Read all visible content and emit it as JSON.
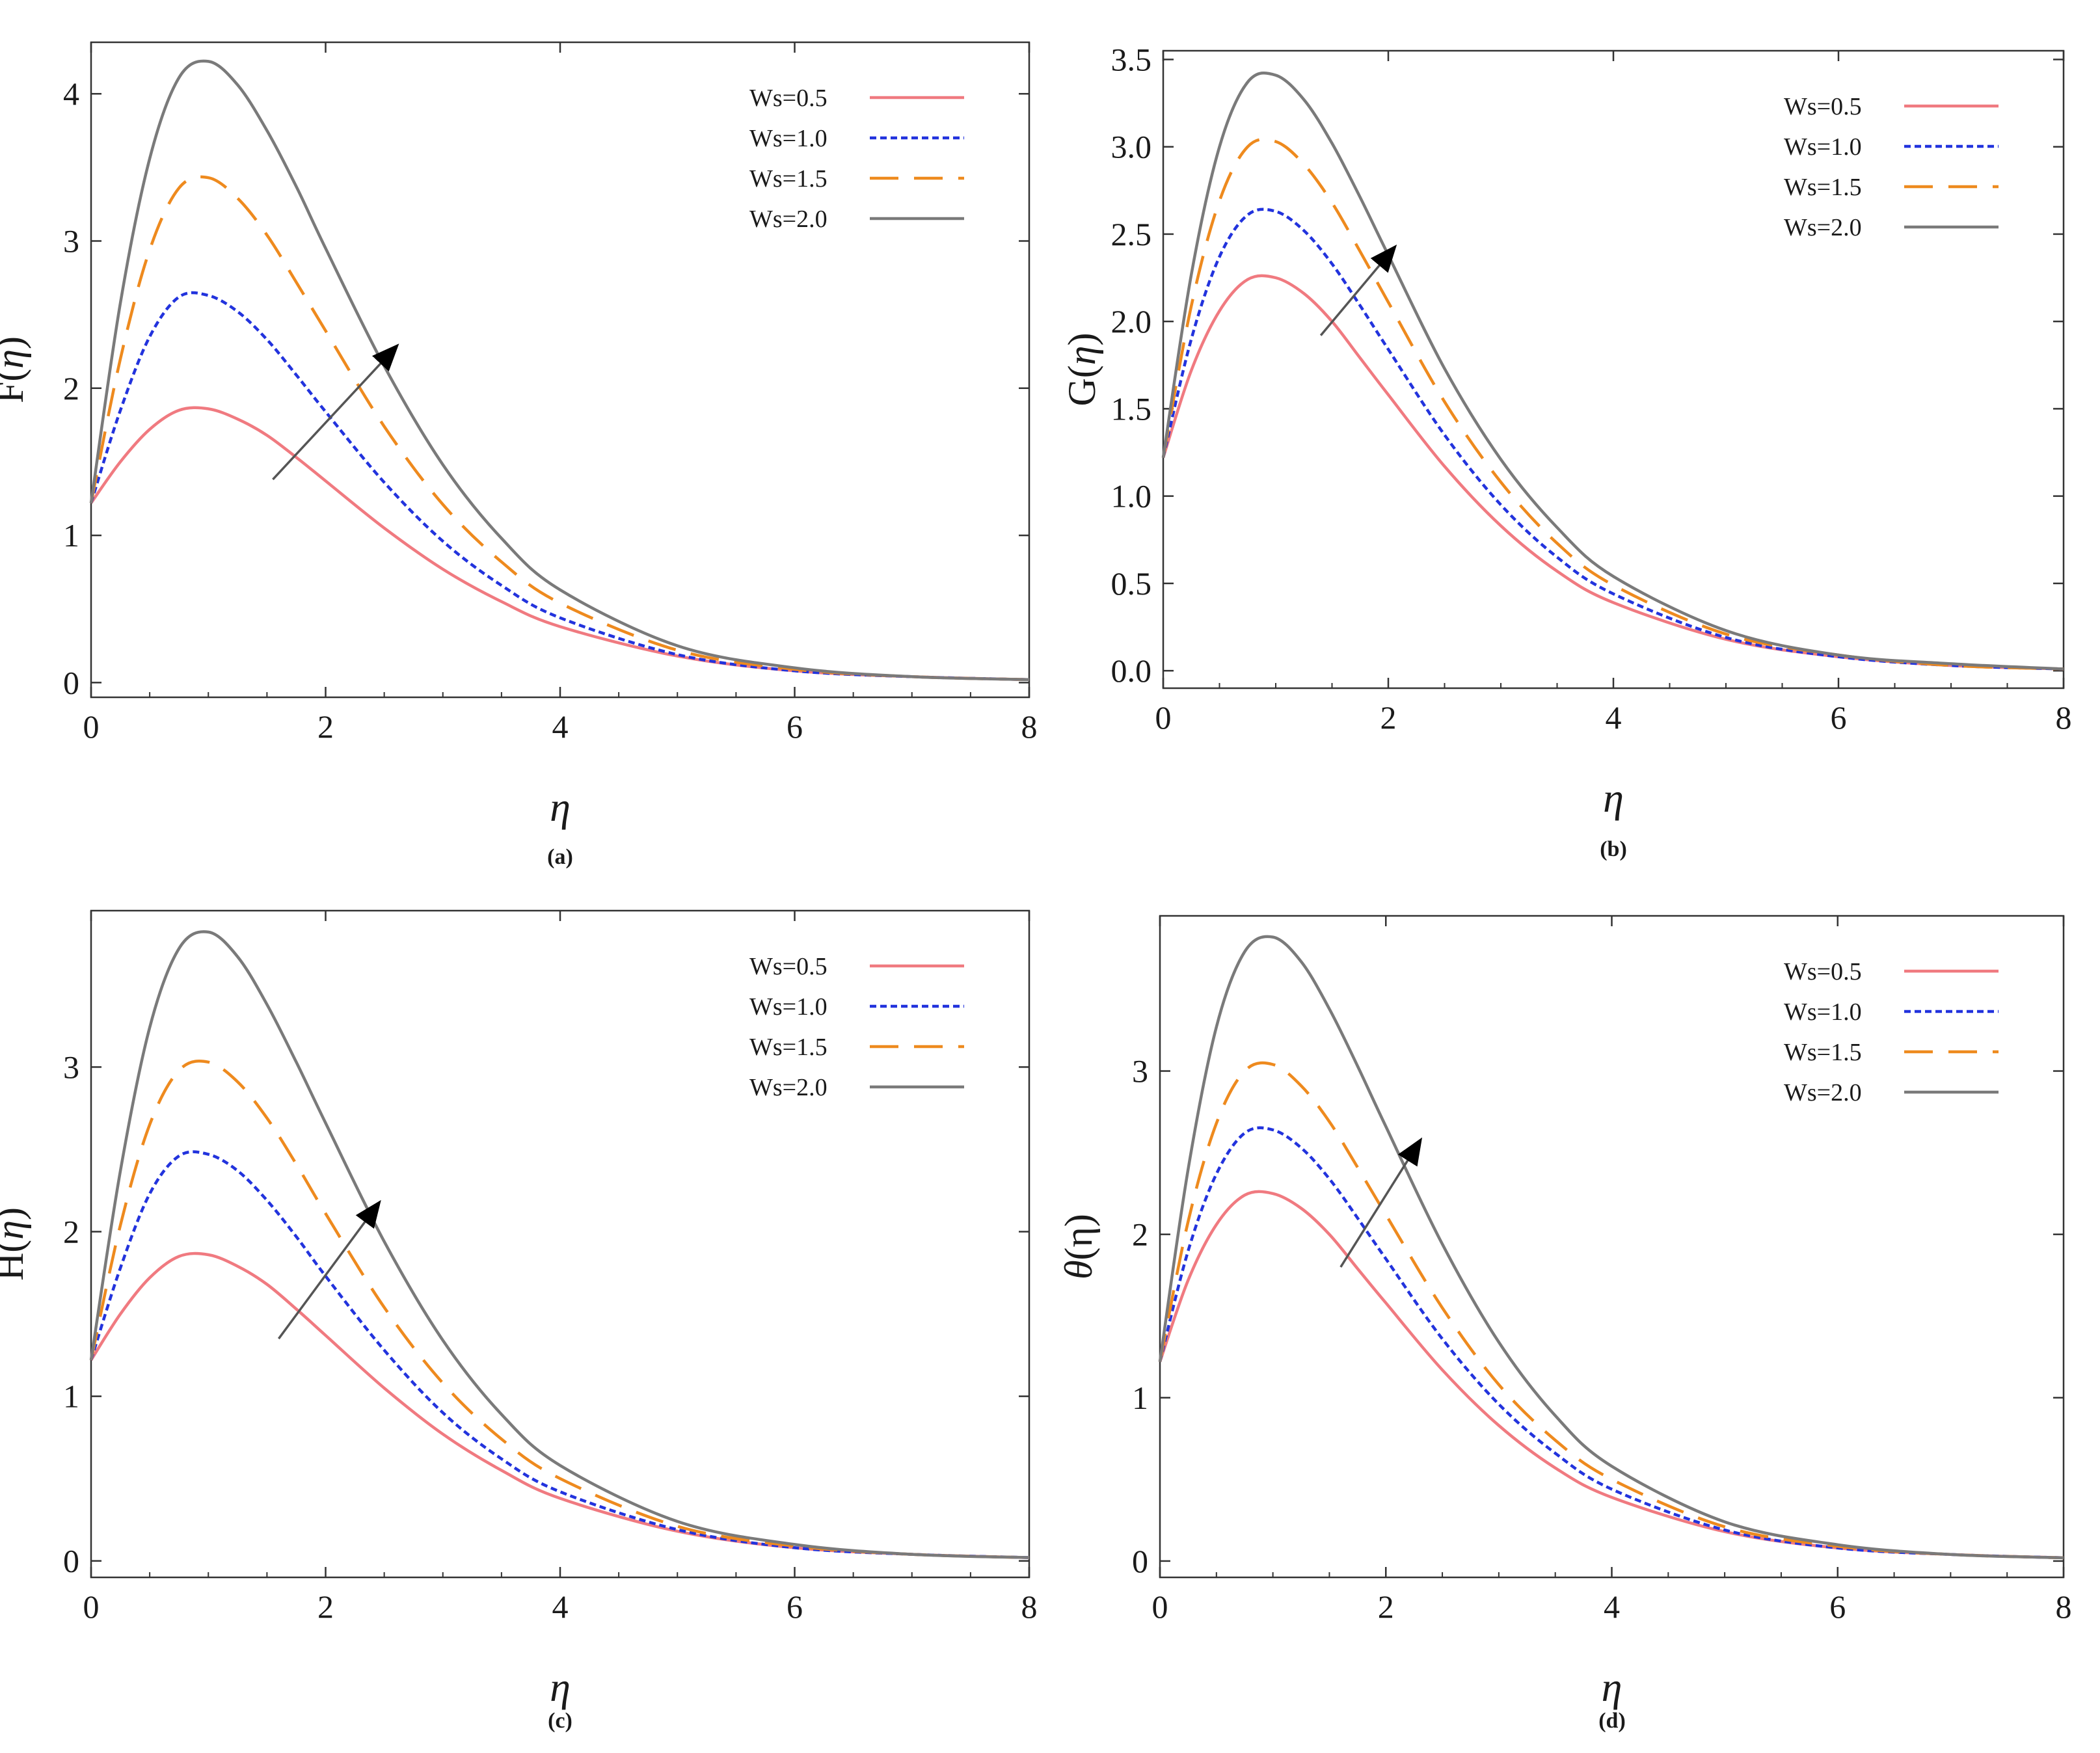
{
  "figure": {
    "legend_labels": [
      "Ws=0.5",
      "Ws=1.0",
      "Ws=1.5",
      "Ws=2.0"
    ],
    "series_colors": [
      "#f07a80",
      "#2233dd",
      "#ee8a1e",
      "#7a7a7a"
    ],
    "series_dashes": [
      "none",
      "10,6",
      "44,24",
      "none"
    ],
    "arrow_color": "#000000"
  },
  "chart_data": [
    {
      "type": "line",
      "panel": "(a)",
      "caption": "(a)",
      "ylabel_prefix": "F(",
      "ylabel_symbol": "η",
      "ylabel_suffix": ")",
      "xlabel": "η",
      "xlim": [
        0,
        8
      ],
      "ylim": [
        -0.1,
        4.35
      ],
      "xticks": [
        0,
        2,
        4,
        6,
        8
      ],
      "xtick_labels": [
        "0",
        "2",
        "4",
        "6",
        "8"
      ],
      "yticks": [
        0,
        1,
        2,
        3,
        4
      ],
      "ytick_labels": [
        "0",
        "1",
        "2",
        "3",
        "4"
      ],
      "legend_position": "top-right",
      "legend_labels": [
        "Ws=0.5",
        "Ws=1.0",
        "Ws=1.5",
        "Ws=2.0"
      ],
      "start_value": 1.22,
      "arrow": {
        "from": [
          1.55,
          1.38
        ],
        "to": [
          2.6,
          2.28
        ]
      },
      "series": [
        {
          "name": "Ws=0.5",
          "peak_x": 0.85,
          "peak_y": 1.87
        },
        {
          "name": "Ws=1.0",
          "peak_x": 0.9,
          "peak_y": 2.65
        },
        {
          "name": "Ws=1.5",
          "peak_x": 0.95,
          "peak_y": 3.44
        },
        {
          "name": "Ws=2.0",
          "peak_x": 1.0,
          "peak_y": 4.23
        }
      ],
      "x": [
        0,
        0.25,
        0.5,
        0.75,
        1,
        1.25,
        1.5,
        1.75,
        2,
        2.5,
        3,
        3.5,
        4,
        5,
        6,
        7,
        8
      ],
      "y": {
        "Ws=0.5": [
          1.22,
          1.5,
          1.72,
          1.85,
          1.86,
          1.79,
          1.68,
          1.53,
          1.37,
          1.05,
          0.77,
          0.55,
          0.38,
          0.18,
          0.08,
          0.04,
          0.02
        ],
        "Ws=1.0": [
          1.22,
          1.85,
          2.35,
          2.62,
          2.63,
          2.52,
          2.33,
          2.09,
          1.84,
          1.36,
          0.96,
          0.66,
          0.44,
          0.19,
          0.08,
          0.04,
          0.02
        ],
        "Ws=1.5": [
          1.22,
          2.2,
          2.94,
          3.36,
          3.43,
          3.29,
          3.04,
          2.72,
          2.39,
          1.74,
          1.21,
          0.82,
          0.54,
          0.22,
          0.09,
          0.04,
          0.02
        ],
        "Ws=2.0": [
          1.22,
          2.58,
          3.56,
          4.11,
          4.22,
          4.06,
          3.75,
          3.37,
          2.95,
          2.15,
          1.48,
          0.98,
          0.63,
          0.25,
          0.1,
          0.04,
          0.02
        ]
      }
    },
    {
      "type": "line",
      "panel": "(b)",
      "caption": "(b)",
      "ylabel_prefix": "G(",
      "ylabel_symbol": "η",
      "ylabel_suffix": ")",
      "xlabel": "η",
      "xlim": [
        0,
        8
      ],
      "ylim": [
        -0.1,
        3.55
      ],
      "xticks": [
        0,
        2,
        4,
        6,
        8
      ],
      "xtick_labels": [
        "0",
        "2",
        "4",
        "6",
        "8"
      ],
      "yticks": [
        0,
        0.5,
        1,
        1.5,
        2,
        2.5,
        3,
        3.5
      ],
      "ytick_labels": [
        "0.0",
        "0.5",
        "1.0",
        "1.5",
        "2.0",
        "2.5",
        "3.0",
        "3.5"
      ],
      "legend_position": "top-right",
      "legend_labels": [
        "Ws=0.5",
        "Ws=1.0",
        "Ws=1.5",
        "Ws=2.0"
      ],
      "start_value": 1.22,
      "arrow": {
        "from": [
          1.4,
          1.92
        ],
        "to": [
          2.05,
          2.42
        ]
      },
      "series": [
        {
          "name": "Ws=0.5",
          "peak_x": 0.9,
          "peak_y": 2.26
        },
        {
          "name": "Ws=1.0",
          "peak_x": 0.9,
          "peak_y": 2.64
        },
        {
          "name": "Ws=1.5",
          "peak_x": 0.95,
          "peak_y": 3.04
        },
        {
          "name": "Ws=2.0",
          "peak_x": 0.95,
          "peak_y": 3.42
        }
      ],
      "x": [
        0,
        0.25,
        0.5,
        0.75,
        1,
        1.25,
        1.5,
        1.75,
        2,
        2.5,
        3,
        3.5,
        4,
        5,
        6,
        7,
        8
      ],
      "y": {
        "Ws=0.5": [
          1.22,
          1.72,
          2.06,
          2.24,
          2.25,
          2.16,
          2.0,
          1.79,
          1.58,
          1.17,
          0.83,
          0.57,
          0.39,
          0.18,
          0.08,
          0.03,
          0.01
        ],
        "Ws=1.0": [
          1.22,
          1.9,
          2.37,
          2.61,
          2.63,
          2.52,
          2.33,
          2.09,
          1.84,
          1.35,
          0.95,
          0.65,
          0.44,
          0.19,
          0.08,
          0.03,
          0.01
        ],
        "Ws=1.5": [
          1.22,
          2.09,
          2.69,
          3.0,
          3.03,
          2.9,
          2.68,
          2.4,
          2.11,
          1.54,
          1.08,
          0.73,
          0.49,
          0.21,
          0.09,
          0.03,
          0.01
        ],
        "Ws=2.0": [
          1.22,
          2.27,
          3.0,
          3.37,
          3.41,
          3.27,
          3.02,
          2.71,
          2.38,
          1.73,
          1.21,
          0.82,
          0.54,
          0.23,
          0.09,
          0.04,
          0.01
        ]
      }
    },
    {
      "type": "line",
      "panel": "(c)",
      "caption": "(c)",
      "ylabel_prefix": "H(",
      "ylabel_symbol": "η",
      "ylabel_suffix": ")",
      "xlabel": "η",
      "xlim": [
        0,
        8
      ],
      "ylim": [
        -0.1,
        3.95
      ],
      "xticks": [
        0,
        2,
        4,
        6,
        8
      ],
      "xtick_labels": [
        "0",
        "2",
        "4",
        "6",
        "8"
      ],
      "yticks": [
        0,
        1,
        2,
        3
      ],
      "ytick_labels": [
        "0",
        "1",
        "2",
        "3"
      ],
      "legend_position": "top-right",
      "legend_labels": [
        "Ws=0.5",
        "Ws=1.0",
        "Ws=1.5",
        "Ws=2.0"
      ],
      "start_value": 1.22,
      "arrow": {
        "from": [
          1.6,
          1.35
        ],
        "to": [
          2.45,
          2.17
        ]
      },
      "series": [
        {
          "name": "Ws=0.5",
          "peak_x": 0.85,
          "peak_y": 1.87
        },
        {
          "name": "Ws=1.0",
          "peak_x": 0.9,
          "peak_y": 2.49
        },
        {
          "name": "Ws=1.5",
          "peak_x": 0.95,
          "peak_y": 3.05
        },
        {
          "name": "Ws=2.0",
          "peak_x": 0.95,
          "peak_y": 3.84
        }
      ],
      "x": [
        0,
        0.25,
        0.5,
        0.75,
        1,
        1.25,
        1.5,
        1.75,
        2,
        2.5,
        3,
        3.5,
        4,
        5,
        6,
        7,
        8
      ],
      "y": {
        "Ws=0.5": [
          1.22,
          1.5,
          1.72,
          1.85,
          1.86,
          1.79,
          1.68,
          1.53,
          1.37,
          1.05,
          0.77,
          0.55,
          0.38,
          0.18,
          0.08,
          0.04,
          0.02
        ],
        "Ws=1.0": [
          1.22,
          1.78,
          2.23,
          2.46,
          2.47,
          2.37,
          2.19,
          1.97,
          1.73,
          1.28,
          0.9,
          0.62,
          0.42,
          0.19,
          0.08,
          0.04,
          0.02
        ],
        "Ws=1.5": [
          1.22,
          2.04,
          2.65,
          2.98,
          3.03,
          2.91,
          2.69,
          2.41,
          2.11,
          1.54,
          1.08,
          0.74,
          0.5,
          0.21,
          0.09,
          0.04,
          0.02
        ],
        "Ws=2.0": [
          1.22,
          2.37,
          3.24,
          3.72,
          3.82,
          3.67,
          3.38,
          3.03,
          2.66,
          1.94,
          1.34,
          0.89,
          0.58,
          0.24,
          0.1,
          0.04,
          0.02
        ]
      }
    },
    {
      "type": "line",
      "panel": "(d)",
      "caption": "(d)",
      "ylabel_prefix": "",
      "ylabel_symbol": "θ",
      "ylabel_suffix": "(η)",
      "xlabel": "η",
      "xlim": [
        0,
        8
      ],
      "ylim": [
        -0.1,
        3.95
      ],
      "xticks": [
        0,
        2,
        4,
        6,
        8
      ],
      "xtick_labels": [
        "0",
        "2",
        "4",
        "6",
        "8"
      ],
      "yticks": [
        0,
        1,
        2,
        3
      ],
      "ytick_labels": [
        "0",
        "1",
        "2",
        "3"
      ],
      "legend_position": "top-right",
      "legend_labels": [
        "Ws=0.5",
        "Ws=1.0",
        "Ws=1.5",
        "Ws=2.0"
      ],
      "start_value": 1.22,
      "arrow": {
        "from": [
          1.6,
          1.8
        ],
        "to": [
          2.3,
          2.57
        ]
      },
      "series": [
        {
          "name": "Ws=0.5",
          "peak_x": 0.9,
          "peak_y": 2.26
        },
        {
          "name": "Ws=1.0",
          "peak_x": 0.9,
          "peak_y": 2.65
        },
        {
          "name": "Ws=1.5",
          "peak_x": 0.95,
          "peak_y": 3.05
        },
        {
          "name": "Ws=2.0",
          "peak_x": 0.95,
          "peak_y": 3.84
        }
      ],
      "x": [
        0,
        0.25,
        0.5,
        0.75,
        1,
        1.25,
        1.5,
        1.75,
        2,
        2.5,
        3,
        3.5,
        4,
        5,
        6,
        7,
        8
      ],
      "y": {
        "Ws=0.5": [
          1.22,
          1.72,
          2.06,
          2.24,
          2.25,
          2.16,
          2.0,
          1.79,
          1.58,
          1.17,
          0.83,
          0.57,
          0.39,
          0.18,
          0.08,
          0.04,
          0.02
        ],
        "Ws=1.0": [
          1.22,
          1.9,
          2.37,
          2.62,
          2.64,
          2.53,
          2.34,
          2.1,
          1.85,
          1.36,
          0.96,
          0.66,
          0.44,
          0.19,
          0.08,
          0.04,
          0.02
        ],
        "Ws=1.5": [
          1.22,
          2.08,
          2.68,
          3.0,
          3.04,
          2.91,
          2.69,
          2.41,
          2.12,
          1.55,
          1.08,
          0.74,
          0.5,
          0.21,
          0.09,
          0.04,
          0.02
        ],
        "Ws=2.0": [
          1.22,
          2.4,
          3.27,
          3.73,
          3.82,
          3.67,
          3.38,
          3.03,
          2.66,
          1.94,
          1.34,
          0.89,
          0.58,
          0.24,
          0.1,
          0.04,
          0.02
        ]
      }
    }
  ]
}
